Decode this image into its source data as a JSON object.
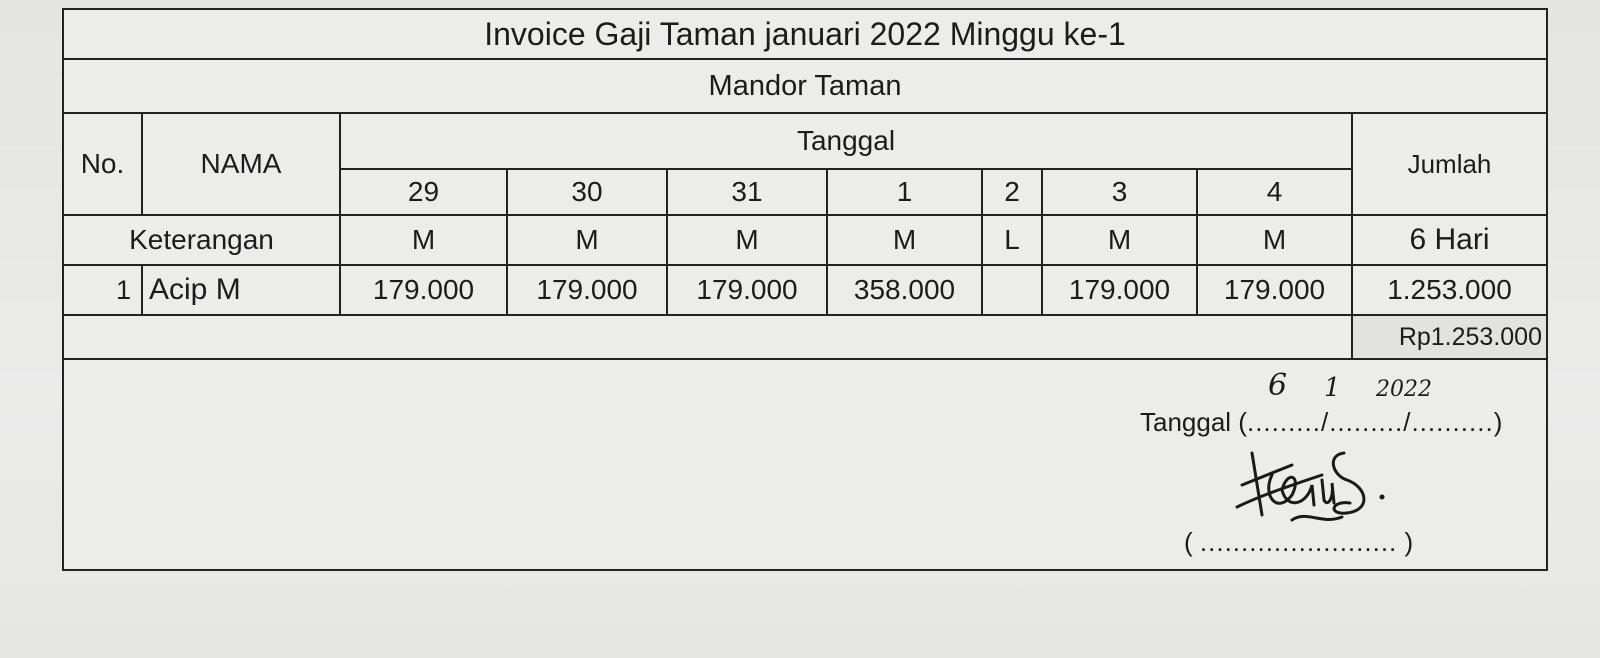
{
  "title": "Invoice Gaji Taman januari 2022 Minggu ke-1",
  "subtitle": "Mandor Taman",
  "headers": {
    "no": "No.",
    "nama": "NAMA",
    "tanggal": "Tanggal",
    "jumlah": "Jumlah",
    "keterangan": "Keterangan",
    "dates": [
      "29",
      "30",
      "31",
      "1",
      "2",
      "3",
      "4"
    ]
  },
  "keterangan_row": {
    "codes": [
      "M",
      "M",
      "M",
      "M",
      "L",
      "M",
      "M"
    ],
    "jumlah": "6 Hari"
  },
  "rows": [
    {
      "no": "1",
      "nama": "Acip M",
      "values": [
        "179.000",
        "179.000",
        "179.000",
        "358.000",
        "",
        "179.000",
        "179.000"
      ],
      "jumlah": "1.253.000"
    }
  ],
  "total": "Rp1.253.000",
  "footer": {
    "tanggal_label": "Tanggal (",
    "tanggal_dots": "........./........./..........",
    "tanggal_close": ")",
    "handwritten_day": "6",
    "handwritten_month": "1",
    "handwritten_year": "2022",
    "signature_open": "(",
    "signature_dots": "........................",
    "signature_close": ")"
  }
}
